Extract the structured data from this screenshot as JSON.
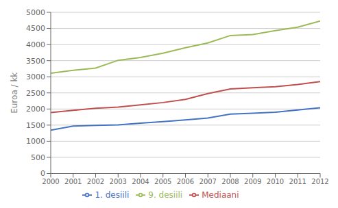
{
  "chart_data": {
    "type": "line",
    "y_label": "Euroa / kk",
    "x": [
      2000,
      2001,
      2002,
      2003,
      2004,
      2005,
      2006,
      2007,
      2008,
      2009,
      2010,
      2011,
      2012
    ],
    "series": [
      {
        "name": "1. desiili",
        "color": "#4472C4",
        "values": [
          1340,
          1470,
          1490,
          1510,
          1560,
          1610,
          1660,
          1720,
          1840,
          1870,
          1900,
          1970,
          2040
        ]
      },
      {
        "name": "Mediaani",
        "color": "#C0504D",
        "values": [
          1890,
          1960,
          2020,
          2060,
          2130,
          2200,
          2300,
          2480,
          2620,
          2660,
          2690,
          2760,
          2850
        ]
      },
      {
        "name": "9. desiili",
        "color": "#9BBB59",
        "values": [
          3110,
          3200,
          3270,
          3510,
          3600,
          3730,
          3900,
          4050,
          4280,
          4310,
          4430,
          4540,
          4730
        ]
      }
    ],
    "xlim": [
      2000,
      2012
    ],
    "xticks": [
      2000,
      2001,
      2002,
      2003,
      2004,
      2005,
      2006,
      2007,
      2008,
      2009,
      2010,
      2011,
      2012
    ],
    "ylim": [
      0,
      5000
    ],
    "yticks": [
      0,
      500,
      1000,
      1500,
      2000,
      2500,
      3000,
      3500,
      4000,
      4500,
      5000
    ],
    "grid": true,
    "legend": "bottom"
  }
}
